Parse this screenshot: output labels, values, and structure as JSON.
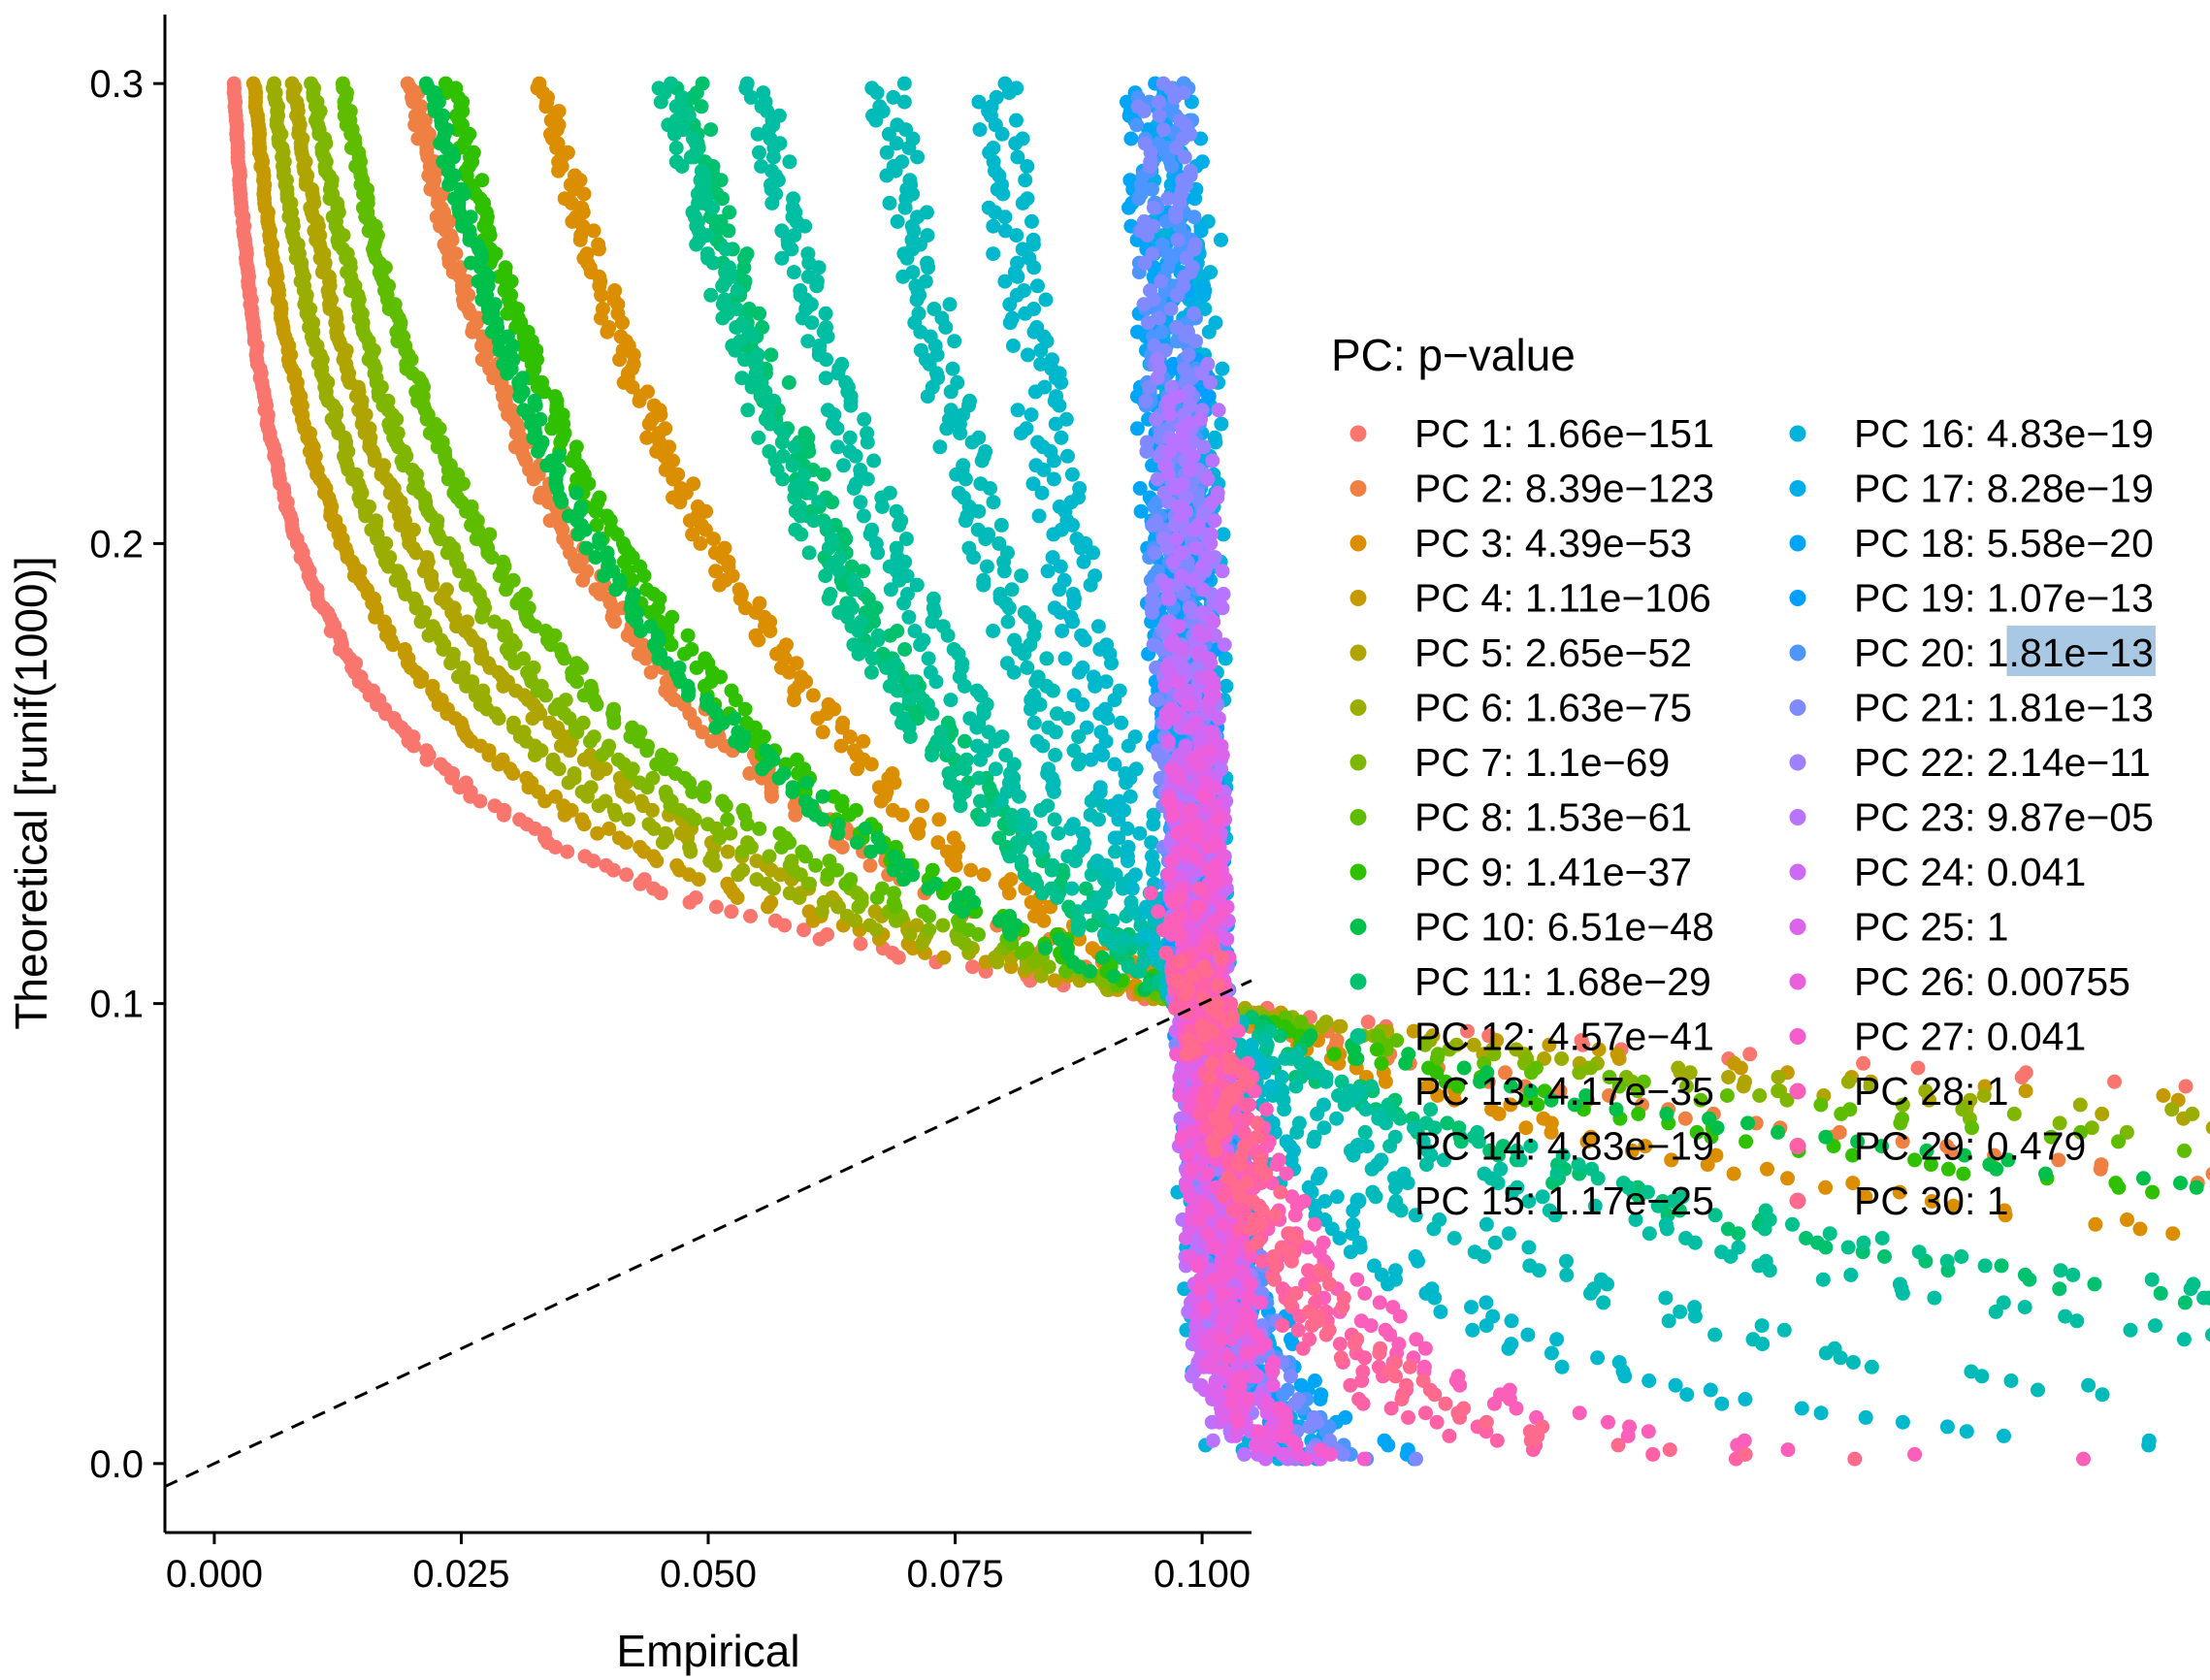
{
  "chart_data": {
    "type": "scatter",
    "title": "",
    "xlabel": "Empirical",
    "ylabel": "Theoretical [runif(1000)]",
    "xlim": [
      -0.005,
      0.105
    ],
    "ylim": [
      -0.015,
      0.315
    ],
    "x_ticks": [
      0.0,
      0.025,
      0.05,
      0.075,
      0.1
    ],
    "x_tick_labels": [
      "0.000",
      "0.025",
      "0.050",
      "0.075",
      "0.100"
    ],
    "y_ticks": [
      0.0,
      0.1,
      0.2,
      0.3
    ],
    "y_tick_labels": [
      "0.0",
      "0.1",
      "0.2",
      "0.3"
    ],
    "reference_line": {
      "style": "dashed",
      "slope": 1,
      "intercept": 0
    },
    "grid": false,
    "legend": {
      "title": "PC: p−value",
      "placement": "right",
      "columns": 2,
      "selected_text": ".81e−13"
    },
    "series": [
      {
        "name": "PC 1: 1.66e−151",
        "color": "#F8766D",
        "endpoint": [
          0.002,
          0.3
        ]
      },
      {
        "name": "PC 2: 8.39e−123",
        "color": "#EE8043",
        "endpoint": [
          0.02,
          0.3
        ]
      },
      {
        "name": "PC 3: 4.39e−53",
        "color": "#DB8E00",
        "endpoint": [
          0.0335,
          0.3
        ]
      },
      {
        "name": "PC 4: 1.11e−106",
        "color": "#C59A00",
        "endpoint": [
          0.004,
          0.3
        ]
      },
      {
        "name": "PC 5: 2.65e−52",
        "color": "#B0A500",
        "endpoint": [
          0.008,
          0.3
        ]
      },
      {
        "name": "PC 6: 1.63e−75",
        "color": "#99AE00",
        "endpoint": [
          0.006,
          0.3
        ]
      },
      {
        "name": "PC 7: 1.1e−69",
        "color": "#7FB700",
        "endpoint": [
          0.01,
          0.3
        ]
      },
      {
        "name": "PC 8: 1.53e−61",
        "color": "#5FBD00",
        "endpoint": [
          0.013,
          0.3
        ]
      },
      {
        "name": "PC 9: 1.41e−37",
        "color": "#2FC100",
        "endpoint": [
          0.024,
          0.3
        ]
      },
      {
        "name": "PC 10: 6.51e−48",
        "color": "#00C04B",
        "endpoint": [
          0.022,
          0.3
        ]
      },
      {
        "name": "PC 11: 1.68e−29",
        "color": "#00C16E",
        "endpoint": [
          0.048,
          0.3
        ]
      },
      {
        "name": "PC 12: 4.57e−41",
        "color": "#00C08B",
        "endpoint": [
          0.046,
          0.3
        ]
      },
      {
        "name": "PC 13: 4.17e−35",
        "color": "#00BEA3",
        "endpoint": [
          0.055,
          0.3
        ]
      },
      {
        "name": "PC 14: 4.83e−19",
        "color": "#00BBB8",
        "endpoint": [
          0.068,
          0.3
        ]
      },
      {
        "name": "PC 15: 1.17e−25",
        "color": "#00B8CB",
        "endpoint": [
          0.079,
          0.3
        ]
      },
      {
        "name": "PC 16: 4.83e−19",
        "color": "#00B3DB",
        "endpoint": [
          0.099,
          0.27
        ]
      },
      {
        "name": "PC 17: 8.28e−19",
        "color": "#00ADE9",
        "endpoint": [
          0.097,
          0.3
        ]
      },
      {
        "name": "PC 18: 5.58e−20",
        "color": "#00A6F5",
        "endpoint": [
          0.095,
          0.3
        ]
      },
      {
        "name": "PC 19: 1.07e−13",
        "color": "#009EFF",
        "endpoint": [
          0.098,
          0.24
        ]
      },
      {
        "name": "PC 20: 1.81e−13",
        "color": "#4D95FF",
        "endpoint": [
          0.096,
          0.3
        ]
      },
      {
        "name": "PC 21: 1.81e−13",
        "color": "#7F8AFF",
        "endpoint": [
          0.096,
          0.3
        ]
      },
      {
        "name": "PC 22: 2.14e−11",
        "color": "#9F80FF",
        "endpoint": [
          0.098,
          0.24
        ]
      },
      {
        "name": "PC 23: 9.87e−05",
        "color": "#B874FF",
        "endpoint": [
          0.099,
          0.232
        ]
      },
      {
        "name": "PC 24: 0.041",
        "color": "#CC6AF5",
        "endpoint": [
          0.099,
          0.183
        ]
      },
      {
        "name": "PC 25: 1",
        "color": "#DC63EB",
        "endpoint": [
          0.099,
          0.171
        ]
      },
      {
        "name": "PC 26: 0.00755",
        "color": "#EA5FDE",
        "endpoint": [
          0.099,
          0.155
        ]
      },
      {
        "name": "PC 27: 0.041",
        "color": "#F55DCE",
        "endpoint": [
          0.099,
          0.145
        ]
      },
      {
        "name": "PC 28: 1",
        "color": "#FC5FBA",
        "endpoint": [
          0.097,
          0.125
        ]
      },
      {
        "name": "PC 29: 0.479",
        "color": "#FF62A4",
        "endpoint": [
          0.099,
          0.112
        ]
      },
      {
        "name": "PC 30: 1",
        "color": "#FF6A8D",
        "endpoint": [
          0.099,
          0.11
        ]
      }
    ]
  }
}
